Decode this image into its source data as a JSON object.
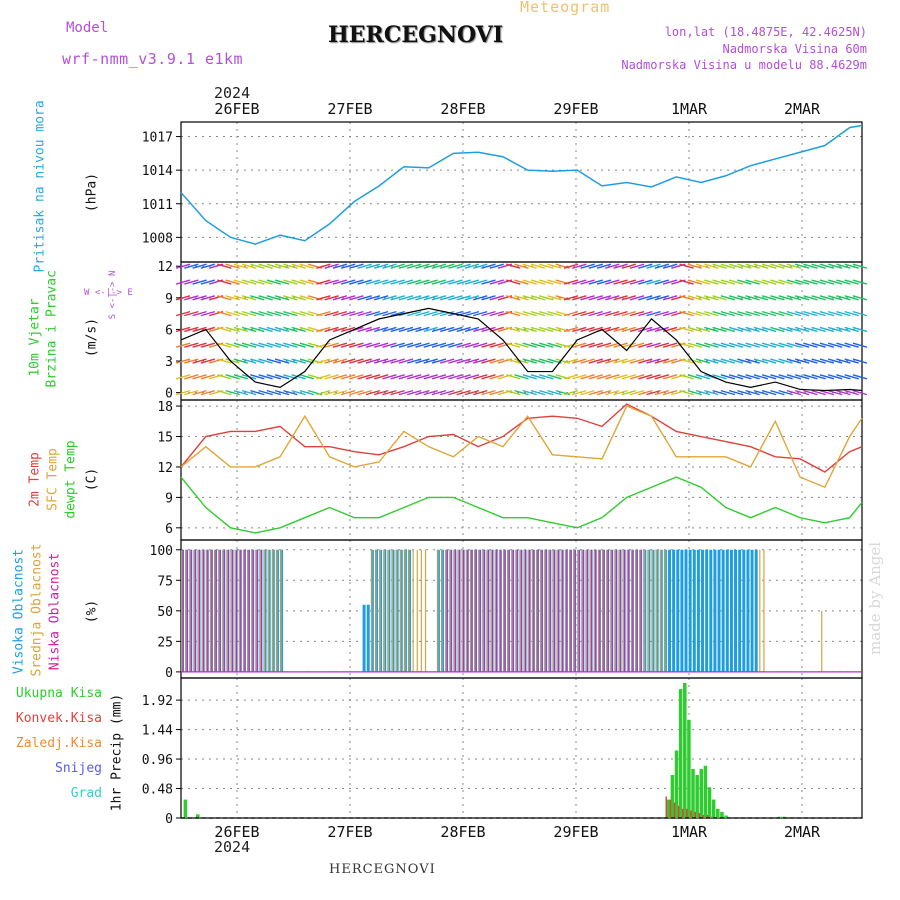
{
  "header": {
    "model_label": "Model",
    "model_name": "wrf-nmm_v3.9.1 e1km",
    "title": "HERCEGNOVI",
    "meteogram_label": "Meteogram",
    "lonlat": "lon,lat (18.4875E, 42.4625N)",
    "elevation": "Nadmorska Visina 60m",
    "model_elevation": "Nadmorska Visina u modelu 88.4629m"
  },
  "footer": {
    "station": "HERCEGNOVI",
    "credit": "made by Angel"
  },
  "time_axis": {
    "year": "2024",
    "day_labels": [
      "26FEB",
      "27FEB",
      "28FEB",
      "29FEB",
      "1MAR",
      "2MAR"
    ]
  },
  "panel_labels": {
    "pressure": [
      "Pritisak na nivou mora",
      "(hPa)"
    ],
    "wind": [
      "10m Vjetar",
      "Brzina i Pravac",
      "(m/s)"
    ],
    "wind_compass": [
      "W <-|-> E",
      "S <-|-> N"
    ],
    "temp": [
      "2m Temp",
      "SFC Temp",
      "dewpt Temp",
      "(C)"
    ],
    "cloud": [
      "Visoka Oblacnost",
      "Srednja Oblacnost",
      "Niska Oblacnost",
      "(%)"
    ],
    "precip_unit": "1hr Precip (mm)",
    "precip_legend": [
      "Ukupna Kisa",
      "Konvek.Kisa",
      "Zaledj.Kisa",
      "Snijeg",
      "Grad"
    ]
  },
  "colors": {
    "pressure": "#1e9ee0",
    "temp2m": "#e0403a",
    "sfc": "#e0a63a",
    "dew": "#2ecc2e",
    "cloud_high": "#1e9ee0",
    "cloud_mid": "#d9a440",
    "cloud_low": "#b02fd0",
    "precip_total": "#2ecc2e",
    "precip_conv": "#e64040",
    "precip_frz": "#f08c30",
    "precip_snow": "#5a5af0",
    "precip_hail": "#30d0c8",
    "wind_speed_line": "#000000",
    "gust_marker": "#ff4040"
  },
  "chart_data": [
    {
      "type": "line",
      "ylabel": "Pritisak na nivou mora (hPa)",
      "yticks": [
        1008,
        1011,
        1014,
        1017
      ],
      "ylim": [
        1005.8,
        1018.3
      ],
      "x_hours": [
        0,
        6,
        12,
        18,
        24,
        30,
        36,
        42,
        48,
        54,
        60,
        66,
        72,
        78,
        84,
        90,
        96,
        102,
        108,
        114,
        120,
        126,
        132,
        138,
        144,
        150,
        156,
        162,
        165
      ],
      "series": [
        {
          "key": "pressure",
          "values": [
            1012,
            1009.5,
            1008,
            1007.4,
            1008.2,
            1007.7,
            1009.2,
            1011.2,
            1012.6,
            1014.3,
            1014.2,
            1015.5,
            1015.6,
            1015.2,
            1014,
            1013.9,
            1014,
            1012.6,
            1012.9,
            1012.5,
            1013.4,
            1012.9,
            1013.5,
            1014.4,
            1015,
            1015.6,
            1016.2,
            1017.8,
            1018
          ]
        }
      ]
    },
    {
      "type": "line",
      "ylabel": "10m Vjetar Brzina i Pravac (m/s)",
      "yticks": [
        0,
        3,
        6,
        9,
        12
      ],
      "ylim": [
        -0.7,
        12.4
      ],
      "x_hours": [
        0,
        6,
        12,
        18,
        24,
        30,
        36,
        42,
        48,
        54,
        60,
        66,
        72,
        78,
        84,
        90,
        96,
        102,
        108,
        114,
        120,
        126,
        132,
        138,
        144,
        150,
        156,
        162,
        165
      ],
      "series": [
        {
          "key": "wind_speed",
          "values": [
            5,
            6,
            3,
            1,
            0.5,
            2,
            5,
            6,
            7,
            7.5,
            8,
            7.5,
            7,
            5,
            2,
            2,
            5,
            6,
            4,
            7,
            5,
            2,
            1,
            0.5,
            1,
            0.3,
            0.2,
            0.3,
            0.2
          ]
        }
      ]
    },
    {
      "type": "line",
      "ylabel": "2m Temp / SFC Temp / dewpt Temp (C)",
      "yticks": [
        6,
        9,
        12,
        15,
        18
      ],
      "ylim": [
        4.8,
        18.6
      ],
      "x_hours": [
        0,
        6,
        12,
        18,
        24,
        30,
        36,
        42,
        48,
        54,
        60,
        66,
        72,
        78,
        84,
        90,
        96,
        102,
        108,
        114,
        120,
        126,
        132,
        138,
        144,
        150,
        156,
        162,
        165
      ],
      "series": [
        {
          "key": "temp2m",
          "values": [
            12,
            15,
            15.5,
            15.5,
            16,
            14,
            14,
            13.5,
            13.2,
            14,
            15,
            15.2,
            14,
            15,
            16.8,
            17,
            16.8,
            16,
            18.2,
            17,
            15.5,
            15,
            14.5,
            14,
            13,
            12.8,
            11.5,
            13.5,
            14
          ]
        },
        {
          "key": "sfc",
          "values": [
            12,
            14,
            12,
            12,
            13,
            17,
            13,
            12,
            12.5,
            15.5,
            14,
            13,
            15,
            14,
            17,
            13.2,
            13,
            12.8,
            18,
            17,
            13,
            13,
            13,
            12,
            16.5,
            11,
            10,
            15,
            16.8
          ]
        },
        {
          "key": "dew",
          "values": [
            11,
            8,
            6,
            5.5,
            6,
            7,
            8,
            7,
            7,
            8,
            9,
            9,
            8,
            7,
            7,
            6.5,
            6,
            7,
            9,
            10,
            11,
            10,
            8,
            7,
            8,
            7,
            6.5,
            7,
            8.5
          ]
        }
      ]
    },
    {
      "type": "bar",
      "ylabel": "Oblacnost (%)",
      "yticks": [
        0,
        25,
        50,
        75,
        100
      ],
      "ylim": [
        -5,
        108
      ],
      "note": "cloud cover bands: high / mid / low",
      "segments": [
        {
          "layer": "high",
          "from": 0,
          "to": 25,
          "value": 100
        },
        {
          "layer": "mid",
          "from": 0,
          "to": 25,
          "value": 100
        },
        {
          "layer": "low",
          "from": 0,
          "to": 20,
          "value": 100
        },
        {
          "layer": "high",
          "from": 28,
          "to": 38,
          "value": 0
        },
        {
          "layer": "high",
          "from": 38,
          "to": 46,
          "value": 0
        },
        {
          "layer": "high",
          "from": 44,
          "to": 46,
          "value": 55
        },
        {
          "layer": "high",
          "from": 46,
          "to": 56,
          "value": 100
        },
        {
          "layer": "mid",
          "from": 46,
          "to": 60,
          "value": 100
        },
        {
          "layer": "high",
          "from": 62,
          "to": 118,
          "value": 100
        },
        {
          "layer": "mid",
          "from": 62,
          "to": 142,
          "value": 100
        },
        {
          "layer": "low",
          "from": 64,
          "to": 112,
          "value": 100
        },
        {
          "layer": "high",
          "from": 118,
          "to": 140,
          "value": 100
        },
        {
          "layer": "mid",
          "from": 155,
          "to": 156,
          "value": 50
        }
      ]
    },
    {
      "type": "bar",
      "ylabel": "1hr Precip (mm)",
      "yticks": [
        0,
        0.48,
        0.96,
        1.44,
        1.92
      ],
      "ylim": [
        0,
        2.28
      ],
      "x_hours": [
        1,
        4,
        118,
        119,
        120,
        121,
        122,
        123,
        124,
        125,
        126,
        127,
        128,
        129,
        130,
        131,
        132,
        145,
        146
      ],
      "series": [
        {
          "key": "total",
          "values": [
            0.3,
            0.06,
            0.3,
            0.7,
            1.1,
            2.1,
            2.2,
            1.6,
            0.8,
            0.7,
            0.8,
            0.85,
            0.5,
            0.3,
            0.15,
            0.1,
            0.04,
            0.02,
            0.02
          ]
        },
        {
          "key": "conv",
          "values": [
            0.0,
            0.0,
            0.35,
            0.3,
            0.25,
            0.2,
            0.15,
            0.15,
            0.12,
            0.1,
            0.08,
            0.05,
            0.05,
            0.02,
            0.0,
            0.0,
            0.0,
            0.0,
            0.0
          ]
        }
      ]
    }
  ]
}
